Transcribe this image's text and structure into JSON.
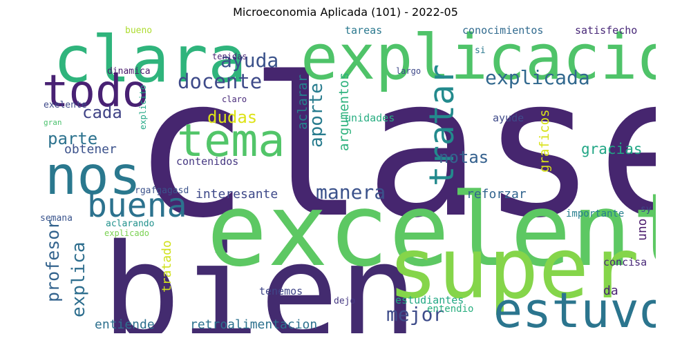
{
  "title": "Microeconomia Aplicada (101) - 2022-05",
  "words": [
    {
      "text": "clase",
      "color": "#46266f",
      "vertical": false
    },
    {
      "text": "bien",
      "color": "#432b6f",
      "vertical": false
    },
    {
      "text": "excelente",
      "color": "#5dc863",
      "vertical": false
    },
    {
      "text": "super",
      "color": "#85d54a",
      "vertical": false
    },
    {
      "text": "explicacion",
      "color": "#4fc369",
      "vertical": false
    },
    {
      "text": "clara",
      "color": "#2fb47c",
      "vertical": false
    },
    {
      "text": "nos",
      "color": "#2a788e",
      "vertical": false
    },
    {
      "text": "todo",
      "color": "#482173",
      "vertical": false
    },
    {
      "text": "tema",
      "color": "#52c569",
      "vertical": false
    },
    {
      "text": "buena",
      "color": "#2c728e",
      "vertical": false
    },
    {
      "text": "estuvo",
      "color": "#2b758e",
      "vertical": false
    },
    {
      "text": "tratar",
      "color": "#238a8d",
      "vertical": true
    },
    {
      "text": "ayuda",
      "color": "#3b528b",
      "vertical": false
    },
    {
      "text": "docente",
      "color": "#3e4a89",
      "vertical": false
    },
    {
      "text": "explicada",
      "color": "#31688e",
      "vertical": false
    },
    {
      "text": "manera",
      "color": "#3b528b",
      "vertical": false
    },
    {
      "text": "mejor",
      "color": "#3e4c8a",
      "vertical": false
    },
    {
      "text": "aporte",
      "color": "#287c8e",
      "vertical": true
    },
    {
      "text": "argumentos",
      "color": "#2db27d",
      "vertical": true
    },
    {
      "text": "aclarar",
      "color": "#26828e",
      "vertical": true
    },
    {
      "text": "profesor",
      "color": "#33638d",
      "vertical": true
    },
    {
      "text": "explica",
      "color": "#2e6e8e",
      "vertical": true
    },
    {
      "text": "cada",
      "color": "#414487",
      "vertical": false
    },
    {
      "text": "parte",
      "color": "#2c728e",
      "vertical": false
    },
    {
      "text": "dudas",
      "color": "#dde318",
      "vertical": false
    },
    {
      "text": "notas",
      "color": "#34608d",
      "vertical": false
    },
    {
      "text": "gracias",
      "color": "#21a685",
      "vertical": false
    },
    {
      "text": "graficos",
      "color": "#d8e219",
      "vertical": true
    },
    {
      "text": "obtener",
      "color": "#3b518b",
      "vertical": false
    },
    {
      "text": "interesante",
      "color": "#3e4989",
      "vertical": false
    },
    {
      "text": "reforzar",
      "color": "#32648e",
      "vertical": false
    },
    {
      "text": "retroalimentacion",
      "color": "#2c718e",
      "vertical": false
    },
    {
      "text": "entiende",
      "color": "#2d708e",
      "vertical": false
    },
    {
      "text": "contenidos",
      "color": "#453781",
      "vertical": false
    },
    {
      "text": "tratado",
      "color": "#d0e11c",
      "vertical": true
    },
    {
      "text": "conocimientos",
      "color": "#306a8e",
      "vertical": false
    },
    {
      "text": "satisfecho",
      "color": "#482878",
      "vertical": false
    },
    {
      "text": "tareas",
      "color": "#2a788e",
      "vertical": false
    },
    {
      "text": "bueno",
      "color": "#addc30",
      "vertical": false
    },
    {
      "text": "si",
      "color": "#2a788e",
      "vertical": false
    },
    {
      "text": "tenidas",
      "color": "#482374",
      "vertical": false
    },
    {
      "text": "dinamica",
      "color": "#48186a",
      "vertical": false
    },
    {
      "text": "largo",
      "color": "#3e4989",
      "vertical": false
    },
    {
      "text": "explicito",
      "color": "#22a785",
      "vertical": true
    },
    {
      "text": "exelente",
      "color": "#3e4989",
      "vertical": false
    },
    {
      "text": "claro",
      "color": "#482979",
      "vertical": false
    },
    {
      "text": "unidades",
      "color": "#27ad81",
      "vertical": false
    },
    {
      "text": "ayude",
      "color": "#3e4a89",
      "vertical": false
    },
    {
      "text": "gran",
      "color": "#4ac16d",
      "vertical": false
    },
    {
      "text": "rgafgagasd",
      "color": "#3b528b",
      "vertical": false
    },
    {
      "text": "importante",
      "color": "#277f8e",
      "vertical": false
    },
    {
      "text": "semana",
      "color": "#3a548c",
      "vertical": false
    },
    {
      "text": "aclarando",
      "color": "#21918c",
      "vertical": false
    },
    {
      "text": "explicado",
      "color": "#7ad151",
      "vertical": false
    },
    {
      "text": "sy",
      "color": "#3f4889",
      "vertical": false
    },
    {
      "text": "uno",
      "color": "#48186a",
      "vertical": true
    },
    {
      "text": "concisa",
      "color": "#482878",
      "vertical": false
    },
    {
      "text": "da",
      "color": "#482173",
      "vertical": false
    },
    {
      "text": "tenemos",
      "color": "#404688",
      "vertical": false
    },
    {
      "text": "dejo",
      "color": "#453882",
      "vertical": false
    },
    {
      "text": "estudiantes",
      "color": "#22a884",
      "vertical": false
    },
    {
      "text": "entendio",
      "color": "#29af7f",
      "vertical": false
    }
  ]
}
